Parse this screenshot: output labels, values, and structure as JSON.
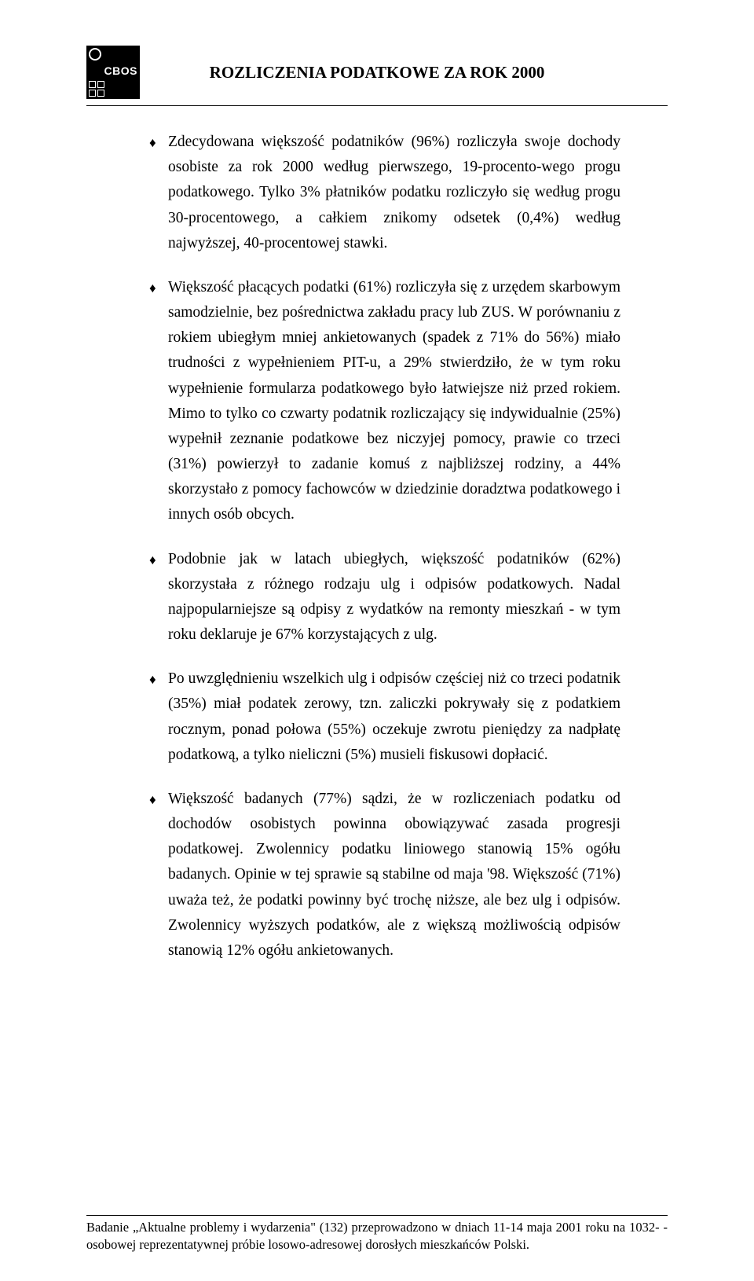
{
  "header": {
    "logo_label": "CBOS",
    "title": "ROZLICZENIA PODATKOWE ZA ROK 2000"
  },
  "bullets": [
    {
      "text": "Zdecydowana większość podatników (96%) rozliczyła swoje dochody osobiste za rok 2000 według pierwszego, 19-procento-wego progu podatkowego. Tylko 3% płatników podatku rozliczyło się według progu 30-procentowego, a całkiem znikomy odsetek (0,4%) według najwyższej, 40-procentowej stawki."
    },
    {
      "text": "Większość płacących podatki (61%) rozliczyła się z urzędem skarbowym samodzielnie, bez pośrednictwa zakładu pracy lub ZUS. W porównaniu z rokiem ubiegłym mniej ankietowanych (spadek z 71% do 56%) miało trudności z wypełnieniem PIT-u, a 29% stwierdziło, że w tym roku wypełnienie formularza podatkowego było łatwiejsze niż przed rokiem. Mimo to tylko co czwarty podatnik rozliczający się indywidualnie (25%) wypełnił zeznanie podatkowe bez niczyjej pomocy, prawie co trzeci (31%) powierzył to zadanie komuś z najbliższej rodziny, a 44% skorzystało z pomocy fachowców w dziedzinie doradztwa podatkowego i innych osób obcych."
    },
    {
      "text": "Podobnie jak w latach ubiegłych, większość podatników (62%) skorzystała z różnego rodzaju ulg i odpisów podatkowych. Nadal najpopularniejsze są odpisy z wydatków na remonty mieszkań - w tym roku deklaruje je 67% korzystających z ulg."
    },
    {
      "text": "Po uwzględnieniu wszelkich ulg i odpisów częściej niż co trzeci podatnik (35%) miał podatek zerowy, tzn. zaliczki pokrywały się z podatkiem rocznym, ponad połowa (55%) oczekuje zwrotu pieniędzy za nadpłatę podatkową, a tylko nieliczni (5%) musieli fiskusowi dopłacić."
    },
    {
      "text": "Większość badanych (77%) sądzi, że w rozliczeniach podatku od dochodów osobistych powinna obowiązywać zasada progresji podatkowej. Zwolennicy podatku liniowego stanowią 15% ogółu badanych. Opinie w tej sprawie są stabilne od maja '98. Większość (71%) uważa też, że podatki powinny być trochę niższe, ale bez ulg i odpisów. Zwolennicy wyższych podatków, ale z większą możliwością odpisów stanowią 12% ogółu ankietowanych."
    }
  ],
  "footer": {
    "text": "Badanie „Aktualne problemy i wydarzenia\" (132) przeprowadzono w dniach 11-14 maja 2001 roku na 1032- -osobowej reprezentatywnej próbie losowo-adresowej dorosłych mieszkańców Polski."
  },
  "style": {
    "text_color": "#000000",
    "background_color": "#ffffff",
    "title_fontsize": 21,
    "body_fontsize": 19.5,
    "footer_fontsize": 16.5,
    "bullet_marker": "♦"
  }
}
